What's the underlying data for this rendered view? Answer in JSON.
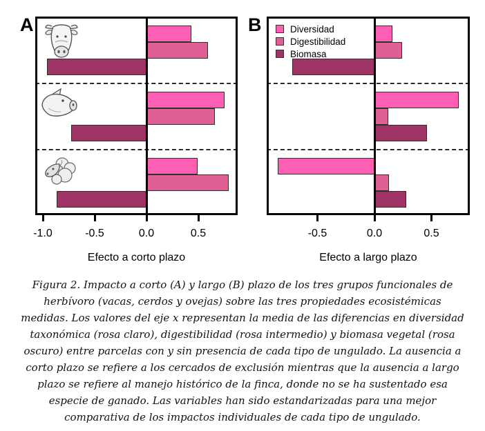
{
  "figure": {
    "caption": "Figura 2. Impacto a corto (A) y largo (B) plazo de los tres grupos funcionales de herbívoro (vacas, cerdos y ovejas) sobre las tres propiedades ecosistémicas medidas. Los valores del eje x representan la media de las diferencias en diversidad taxonómica (rosa claro), digestibilidad (rosa intermedio) y biomasa vegetal (rosa oscuro) entre parcelas con y sin presencia de cada tipo de ungulado. La ausencia a corto plazo se refiere a los cercados de exclusión mientras que la ausencia a largo plazo se refiere al manejo histórico de la finca, donde no se ha sustentado esa especie de ganado. Las variables han sido estandarizadas para una mejor comparativa de los impactos individuales de cada tipo de ungulado.",
    "colors": {
      "diversidad": "#fe5fb3",
      "digestibilidad": "#e06095",
      "biomasa": "#9e3566",
      "bar_border": "#2e2e2e"
    }
  },
  "chart_data": [
    {
      "type": "bar",
      "panel": "A",
      "panel_label": "A",
      "orientation": "horizontal",
      "xlabel": "Efecto a corto plazo",
      "xlim": [
        -1.07,
        0.88
      ],
      "xticks": [
        -1.0,
        -0.5,
        0.0,
        0.5
      ],
      "xtick_labels": [
        "-1.0",
        "-0.5",
        "0.0",
        "0.5"
      ],
      "grid": false,
      "groups": [
        "vacas",
        "cerdos",
        "ovejas"
      ],
      "group_icons": [
        "cow-icon",
        "pig-icon",
        "sheep-icon"
      ],
      "series": [
        {
          "name": "Diversidad",
          "color": "#fe5fb3",
          "values": [
            0.43,
            0.75,
            0.49
          ]
        },
        {
          "name": "Digestibilidad",
          "color": "#e06095",
          "values": [
            0.59,
            0.66,
            0.79
          ]
        },
        {
          "name": "Biomasa",
          "color": "#9e3566",
          "values": [
            -0.96,
            -0.73,
            -0.87
          ]
        }
      ]
    },
    {
      "type": "bar",
      "panel": "B",
      "panel_label": "B",
      "orientation": "horizontal",
      "xlabel": "Efecto a largo plazo",
      "xlim": [
        -0.95,
        0.84
      ],
      "xticks": [
        -0.5,
        0.0,
        0.5
      ],
      "xtick_labels": [
        "-0.5",
        "0.0",
        "0.5"
      ],
      "grid": false,
      "legend_position": "top-left",
      "groups": [
        "vacas",
        "cerdos",
        "ovejas"
      ],
      "series": [
        {
          "name": "Diversidad",
          "color": "#fe5fb3",
          "values": [
            0.16,
            0.74,
            -0.85
          ]
        },
        {
          "name": "Digestibilidad",
          "color": "#e06095",
          "values": [
            0.24,
            0.12,
            0.13
          ]
        },
        {
          "name": "Biomasa",
          "color": "#9e3566",
          "values": [
            -0.72,
            0.46,
            0.28
          ]
        }
      ]
    }
  ]
}
